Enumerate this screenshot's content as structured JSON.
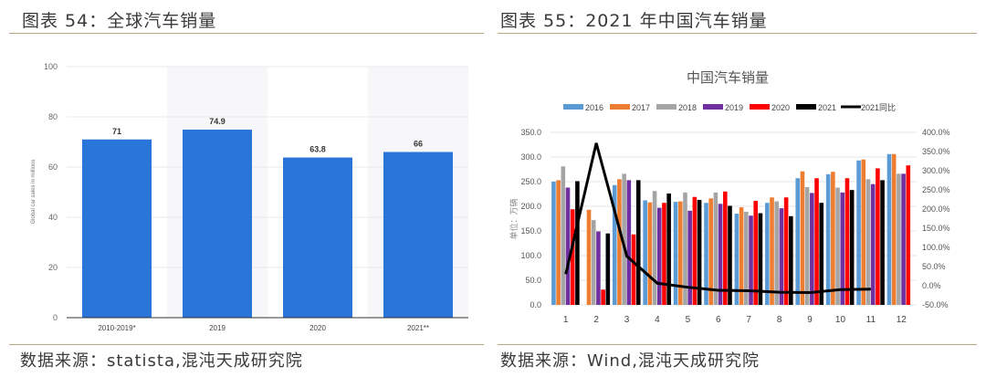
{
  "left": {
    "title": "图表 54：全球汽车销量",
    "source": "数据来源：statista,混沌天成研究院"
  },
  "right": {
    "title": "图表 55：2021 年中国汽车销量",
    "source": "数据来源：Wind,混沌天成研究院"
  },
  "chart_data": [
    {
      "type": "bar",
      "categories": [
        "2010-2019*",
        "2019",
        "2020",
        "2021**"
      ],
      "values": [
        71,
        74.9,
        63.8,
        66
      ],
      "data_labels": [
        "71",
        "74.9",
        "63.8",
        "66"
      ],
      "ylabel": "Global car sales in millions",
      "ylim": [
        0,
        100
      ],
      "yticks": [
        0,
        20,
        40,
        60,
        80,
        100
      ],
      "grid": true,
      "color": "#2a75d9",
      "shaded_categories": [
        "2019",
        "2021**"
      ]
    },
    {
      "type": "bar",
      "title": "中国汽车销量",
      "ylabel": "单位：万辆",
      "categories": [
        "1",
        "2",
        "3",
        "4",
        "5",
        "6",
        "7",
        "8",
        "9",
        "10",
        "11",
        "12"
      ],
      "ylim": [
        0,
        350
      ],
      "yticks": [
        "0.0",
        "50.0",
        "100.0",
        "150.0",
        "200.0",
        "250.0",
        "300.0",
        "350.0"
      ],
      "y2lim": [
        -50,
        400
      ],
      "y2ticks": [
        "-50.0%",
        "0.0%",
        "50.0%",
        "100.0%",
        "150.0%",
        "200.0%",
        "250.0%",
        "300.0%",
        "350.0%",
        "400.0%"
      ],
      "grid": true,
      "legend": "top",
      "series": [
        {
          "name": "2016",
          "color": "#5b9bd5",
          "values": [
            250,
            null,
            243,
            212,
            209,
            207,
            185,
            207,
            257,
            265,
            293,
            306
          ]
        },
        {
          "name": "2017",
          "color": "#ed7d31",
          "values": [
            253,
            193,
            255,
            208,
            210,
            216,
            198,
            218,
            271,
            270,
            295,
            306
          ]
        },
        {
          "name": "2018",
          "color": "#a5a5a5",
          "values": [
            281,
            172,
            266,
            231,
            228,
            228,
            189,
            210,
            239,
            238,
            255,
            266
          ]
        },
        {
          "name": "2019",
          "color": "#7030a0",
          "values": [
            238,
            149,
            253,
            197,
            191,
            205,
            181,
            196,
            227,
            228,
            245,
            266
          ]
        },
        {
          "name": "2020",
          "color": "#ff0000",
          "values": [
            194,
            31,
            143,
            207,
            219,
            230,
            211,
            218,
            257,
            257,
            277,
            283
          ]
        },
        {
          "name": "2021",
          "color": "#000000",
          "values": [
            251,
            145,
            253,
            226,
            213,
            201,
            186,
            180,
            207,
            233,
            253,
            null
          ]
        }
      ],
      "line": {
        "name": "2021同比",
        "color": "#000000",
        "axis": "right",
        "values": [
          30,
          372,
          77,
          6.5,
          -4,
          -12,
          -13,
          -17,
          -18,
          -10,
          -9,
          null
        ]
      }
    }
  ]
}
